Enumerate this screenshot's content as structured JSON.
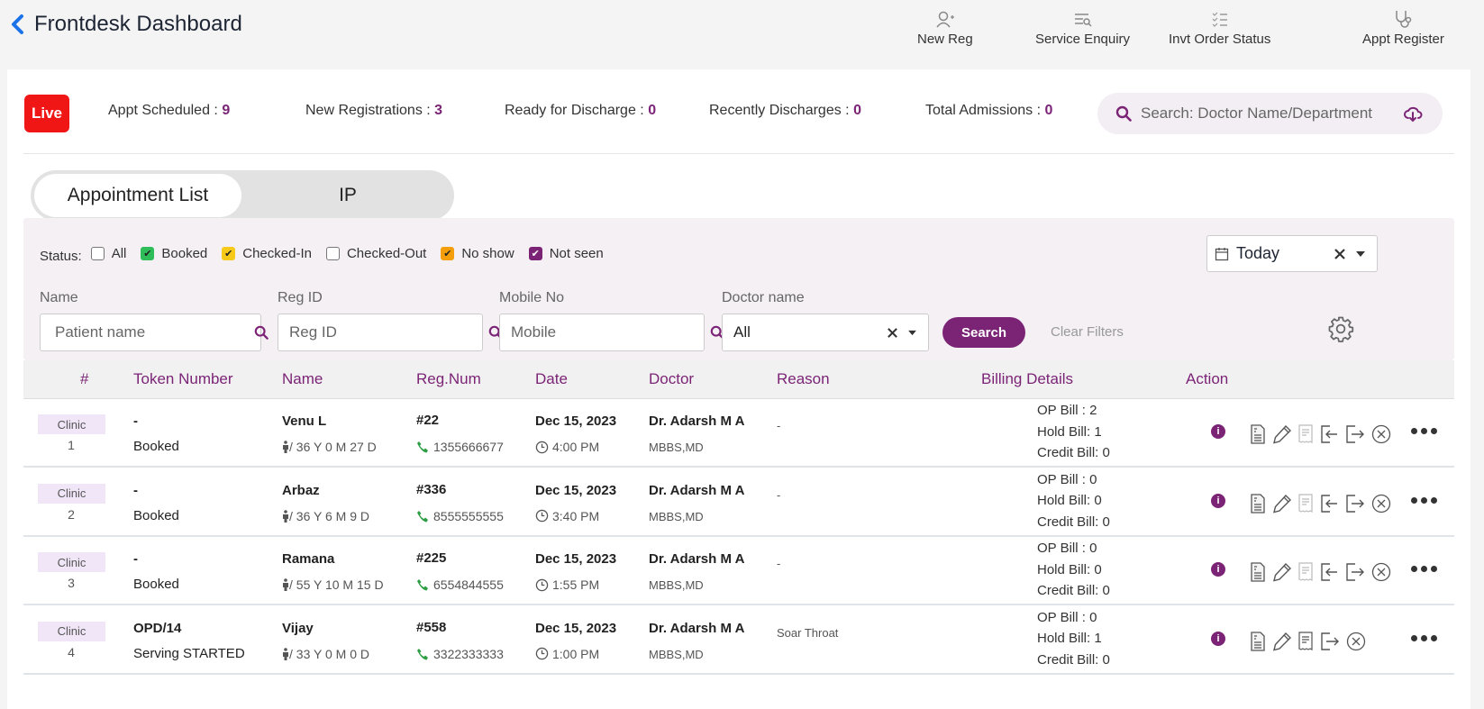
{
  "header": {
    "title": "Frontdesk Dashboard",
    "quick_actions": [
      {
        "label": "New Reg",
        "icon": "user-plus-icon"
      },
      {
        "label": "Service Enquiry",
        "icon": "list-search-icon"
      },
      {
        "label": "Invt Order Status",
        "icon": "checklist-icon"
      },
      {
        "label": "Appt Register",
        "icon": "stethoscope-icon"
      }
    ]
  },
  "stats": {
    "live_label": "Live",
    "items": [
      {
        "label": "Appt Scheduled : ",
        "value": "9"
      },
      {
        "label": "New Registrations : ",
        "value": "3"
      },
      {
        "label": "Ready for Discharge : ",
        "value": "0"
      },
      {
        "label": "Recently Discharges : ",
        "value": "0"
      },
      {
        "label": "Total Admissions : ",
        "value": "0"
      }
    ],
    "search_placeholder": "Search: Doctor Name/Department"
  },
  "tabs": [
    {
      "label": "Appointment List",
      "active": true
    },
    {
      "label": "IP",
      "active": false
    }
  ],
  "filters": {
    "status_label": "Status:",
    "statuses": [
      {
        "label": "All",
        "checked": false,
        "color": "#ffffff"
      },
      {
        "label": "Booked",
        "checked": true,
        "color": "#2ebd59"
      },
      {
        "label": "Checked-In",
        "checked": true,
        "color": "#f7c919"
      },
      {
        "label": "Checked-Out",
        "checked": false,
        "color": "#ffffff"
      },
      {
        "label": "No show",
        "checked": true,
        "color": "#f59e0b"
      },
      {
        "label": "Not seen",
        "checked": true,
        "color": "#7b2476"
      }
    ],
    "date_value": "Today",
    "name_label": "Name",
    "name_placeholder": "Patient name",
    "regid_label": "Reg ID",
    "regid_placeholder": "Reg ID",
    "mobile_label": "Mobile No",
    "mobile_placeholder": "Mobile",
    "doctor_label": "Doctor name",
    "doctor_value": "All",
    "search_button": "Search",
    "clear_filters": "Clear Filters"
  },
  "table": {
    "columns": [
      "#",
      "Token Number",
      "Name",
      "Reg.Num",
      "Date",
      "Doctor",
      "Reason",
      "Billing Details",
      "Action"
    ],
    "rows": [
      {
        "type": "Clinic",
        "index": "1",
        "token": "-",
        "token_status": "Booked",
        "name": "Venu L",
        "age": "/ 36 Y 0 M 27 D",
        "reg": "#22",
        "phone": "1355666677",
        "date": "Dec 15, 2023",
        "time": "4:00 PM",
        "doctor": "Dr. Adarsh M A",
        "degree": "MBBS,MD",
        "reason": "-",
        "op_bill": "OP Bill : 2",
        "hold_bill": "Hold Bill: 1",
        "credit_bill": "Credit Bill: 0"
      },
      {
        "type": "Clinic",
        "index": "2",
        "token": "-",
        "token_status": "Booked",
        "name": "Arbaz",
        "age": "/ 36 Y 6 M 9 D",
        "reg": "#336",
        "phone": "8555555555",
        "date": "Dec 15, 2023",
        "time": "3:40 PM",
        "doctor": "Dr. Adarsh M A",
        "degree": "MBBS,MD",
        "reason": "-",
        "op_bill": "OP Bill : 0",
        "hold_bill": "Hold Bill: 0",
        "credit_bill": "Credit Bill: 0"
      },
      {
        "type": "Clinic",
        "index": "3",
        "token": "-",
        "token_status": "Booked",
        "name": "Ramana",
        "age": "/ 55 Y 10 M 15 D",
        "reg": "#225",
        "phone": "6554844555",
        "date": "Dec 15, 2023",
        "time": "1:55 PM",
        "doctor": "Dr. Adarsh M A",
        "degree": "MBBS,MD",
        "reason": "-",
        "op_bill": "OP Bill : 0",
        "hold_bill": "Hold Bill: 0",
        "credit_bill": "Credit Bill: 0"
      },
      {
        "type": "Clinic",
        "index": "4",
        "token": "OPD/14",
        "token_status": "Serving STARTED",
        "name": "Vijay",
        "age": "/ 33 Y 0 M 0 D",
        "reg": "#558",
        "phone": "3322333333",
        "date": "Dec 15, 2023",
        "time": "1:00 PM",
        "doctor": "Dr. Adarsh M A",
        "degree": "MBBS,MD",
        "reason": "Soar Throat",
        "op_bill": "OP Bill : 0",
        "hold_bill": "Hold Bill: 1",
        "credit_bill": "Credit Bill: 0"
      }
    ]
  },
  "colors": {
    "accent": "#7b2476",
    "live": "#f01616",
    "back": "#1a73e8",
    "phone": "#2e9e44"
  }
}
